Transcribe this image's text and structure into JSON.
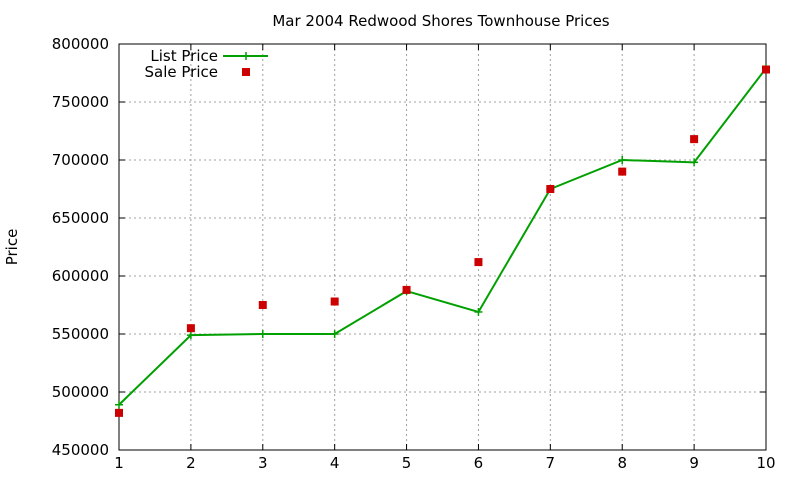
{
  "chart_data": {
    "type": "line",
    "title": "Mar 2004 Redwood Shores Townhouse Prices",
    "xlabel": "",
    "ylabel": "Price",
    "xlim": [
      1,
      10
    ],
    "ylim": [
      450000,
      800000
    ],
    "x_ticks": [
      "1",
      "2",
      "3",
      "4",
      "5",
      "6",
      "7",
      "8",
      "9",
      "10"
    ],
    "y_ticks": [
      "450000",
      "500000",
      "550000",
      "600000",
      "650000",
      "700000",
      "750000",
      "800000"
    ],
    "grid": true,
    "legend_position": "top-left",
    "series": [
      {
        "name": "List Price",
        "style": "line-with-plus-markers",
        "color": "#00a000",
        "x": [
          1,
          2,
          3,
          4,
          5,
          6,
          7,
          8,
          9,
          10
        ],
        "y": [
          489000,
          549000,
          550000,
          550000,
          587000,
          569000,
          675000,
          700000,
          698000,
          779000
        ]
      },
      {
        "name": "Sale Price",
        "style": "square-markers",
        "color": "#cc0000",
        "x": [
          1,
          2,
          3,
          4,
          5,
          6,
          7,
          8,
          9,
          10
        ],
        "y": [
          482000,
          555000,
          575000,
          578000,
          588000,
          612000,
          675000,
          690000,
          718000,
          778000
        ]
      }
    ]
  }
}
